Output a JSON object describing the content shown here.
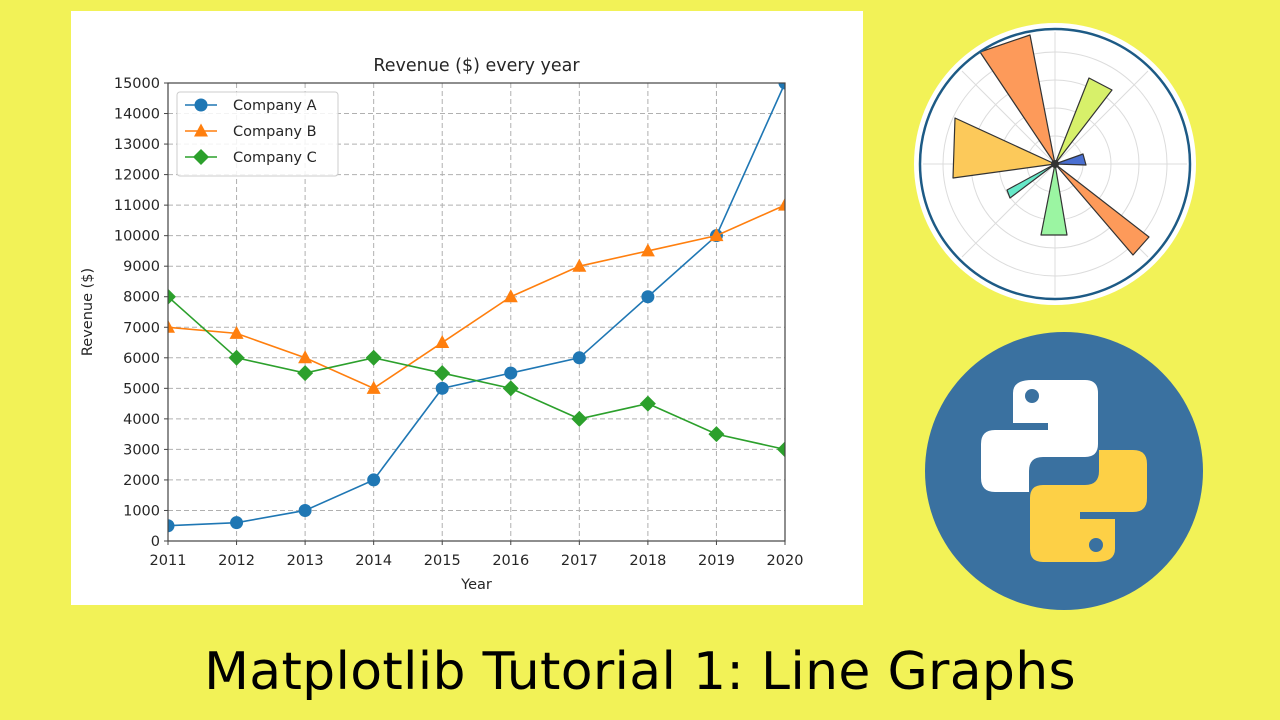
{
  "page": {
    "background_color": "#f2f257",
    "headline": "Matplotlib Tutorial 1: Line Graphs"
  },
  "logos": {
    "polar_chart": "polar-bar-chart-icon",
    "python": "python-logo-icon"
  },
  "chart_data": {
    "type": "line",
    "title": "Revenue ($) every year",
    "xlabel": "Year",
    "ylabel": "Revenue ($)",
    "x": [
      2011,
      2012,
      2013,
      2014,
      2015,
      2016,
      2017,
      2018,
      2019,
      2020
    ],
    "xticks": [
      "2011",
      "2012",
      "2013",
      "2014",
      "2015",
      "2016",
      "2017",
      "2018",
      "2019",
      "2020"
    ],
    "yticks": [
      "0",
      "1000",
      "2000",
      "3000",
      "4000",
      "5000",
      "6000",
      "7000",
      "8000",
      "9000",
      "10000",
      "11000",
      "12000",
      "13000",
      "14000",
      "15000"
    ],
    "xlim": [
      2011,
      2020
    ],
    "ylim": [
      0,
      15000
    ],
    "grid": true,
    "grid_style": "dashed",
    "legend_position": "upper left",
    "series": [
      {
        "name": "Company A",
        "color": "#1f77b4",
        "marker": "circle",
        "values": [
          500,
          600,
          1000,
          2000,
          5000,
          5500,
          6000,
          8000,
          10000,
          15000
        ]
      },
      {
        "name": "Company B",
        "color": "#ff7f0e",
        "marker": "triangle",
        "values": [
          7000,
          6800,
          6000,
          5000,
          6500,
          8000,
          9000,
          9500,
          10000,
          11000
        ]
      },
      {
        "name": "Company C",
        "color": "#2ca02c",
        "marker": "diamond",
        "values": [
          8000,
          6000,
          5500,
          6000,
          5500,
          5000,
          4000,
          4500,
          3500,
          3000
        ]
      }
    ]
  }
}
